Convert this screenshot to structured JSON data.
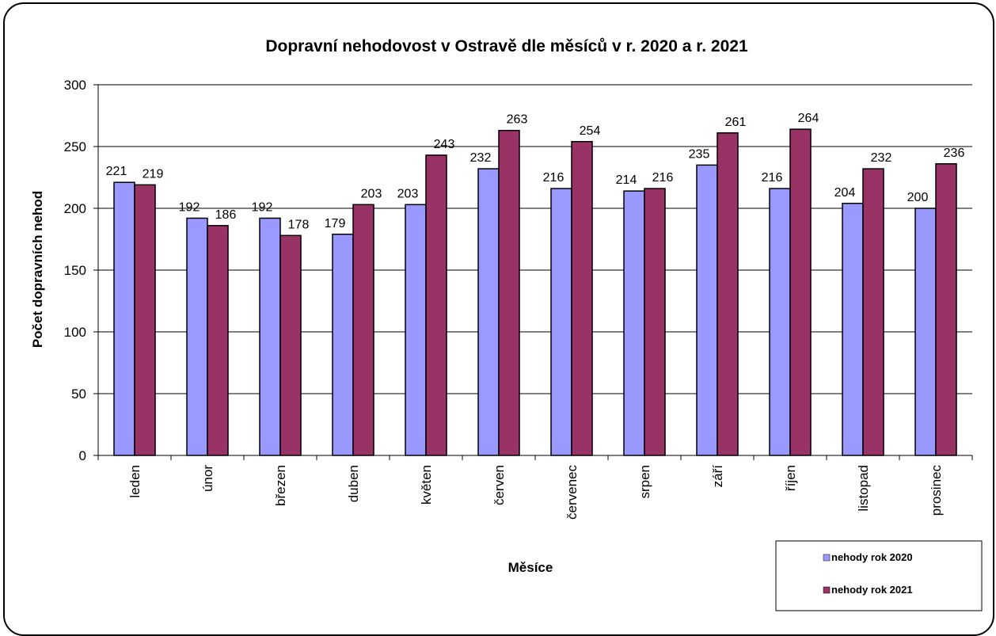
{
  "chart_data": {
    "type": "bar",
    "title": "Dopravní nehodovost v Ostravě dle měsíců v r. 2020 a r. 2021",
    "xlabel": "Měsíce",
    "ylabel": "Počet dopravních  nehod",
    "ylim": [
      0,
      300
    ],
    "yticks": [
      0,
      50,
      100,
      150,
      200,
      250,
      300
    ],
    "grid": true,
    "legend_position": "bottom-right",
    "categories": [
      "leden",
      "únor",
      "březen",
      "duben",
      "květen",
      "červen",
      "červenec",
      "srpen",
      "září",
      "říjen",
      "listopad",
      "prosinec"
    ],
    "series": [
      {
        "name": "nehody rok 2020",
        "color": "#9999ff",
        "values": [
          221,
          192,
          192,
          179,
          203,
          232,
          216,
          214,
          235,
          216,
          204,
          200
        ]
      },
      {
        "name": "nehody rok 2021",
        "color": "#993366",
        "values": [
          219,
          186,
          178,
          203,
          243,
          263,
          254,
          216,
          261,
          264,
          232,
          236
        ]
      }
    ]
  }
}
